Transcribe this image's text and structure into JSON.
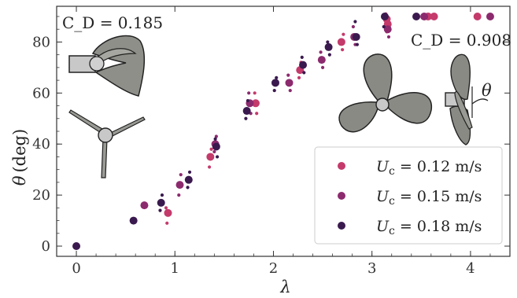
{
  "chart_data": {
    "type": "scatter",
    "xlabel": "λ",
    "ylabel_symbol": "θ",
    "ylabel_unit": "(deg)",
    "xlim": [
      -0.2,
      4.4
    ],
    "ylim": [
      -4,
      94
    ],
    "xticks": [
      "0",
      "1",
      "2",
      "3",
      "4"
    ],
    "yticks": [
      "0",
      "20",
      "40",
      "60",
      "80"
    ],
    "annotations": {
      "left": "C_D = 0.185",
      "right": "C_D = 0.908",
      "theta_marker": "θ"
    },
    "legend_position": "lower-right",
    "series": [
      {
        "name": "U_c = 0.12 m/s",
        "legend_label": "U",
        "legend_sub": "c",
        "legend_value": " = 0.12 m/s",
        "color": "#c43a6b",
        "points": [
          [
            0.93,
            13
          ],
          [
            1.36,
            35
          ],
          [
            1.82,
            56
          ],
          [
            2.27,
            69
          ],
          [
            2.69,
            80
          ],
          [
            3.15,
            89
          ],
          [
            3.57,
            90
          ],
          [
            3.63,
            90
          ],
          [
            4.07,
            90
          ],
          [
            3.16,
            87
          ]
        ],
        "scatter": [
          [
            0.92,
            9
          ],
          [
            0.91,
            15
          ],
          [
            1.35,
            31
          ],
          [
            1.37,
            38
          ],
          [
            1.83,
            52
          ],
          [
            1.81,
            60
          ],
          [
            2.26,
            66
          ],
          [
            2.28,
            72
          ],
          [
            2.7,
            77
          ],
          [
            2.71,
            83
          ],
          [
            3.15,
            84
          ],
          [
            3.14,
            91
          ]
        ]
      },
      {
        "name": "U_c = 0.15 m/s",
        "legend_label": "U",
        "legend_sub": "c",
        "legend_value": " = 0.15 m/s",
        "color": "#8c2a6e",
        "points": [
          [
            0.69,
            16
          ],
          [
            1.05,
            24
          ],
          [
            1.41,
            40
          ],
          [
            1.76,
            56
          ],
          [
            2.16,
            64
          ],
          [
            2.49,
            73
          ],
          [
            2.82,
            82
          ],
          [
            3.16,
            85
          ],
          [
            3.53,
            90
          ],
          [
            4.2,
            90
          ]
        ],
        "scatter": [
          [
            1.06,
            28
          ],
          [
            1.04,
            20
          ],
          [
            1.4,
            37
          ],
          [
            1.42,
            43
          ],
          [
            1.77,
            52
          ],
          [
            1.75,
            60
          ],
          [
            2.17,
            61
          ],
          [
            2.15,
            67
          ],
          [
            2.5,
            70
          ],
          [
            2.48,
            76
          ],
          [
            2.83,
            79
          ],
          [
            2.81,
            86
          ],
          [
            3.17,
            82
          ]
        ]
      },
      {
        "name": "U_c = 0.18 m/s",
        "legend_label": "U",
        "legend_sub": "c",
        "legend_value": " = 0.18 m/s",
        "color": "#3a1a4e",
        "points": [
          [
            0.0,
            0
          ],
          [
            0.58,
            10
          ],
          [
            0.86,
            17
          ],
          [
            1.14,
            26
          ],
          [
            1.42,
            39
          ],
          [
            1.73,
            53
          ],
          [
            2.02,
            64
          ],
          [
            2.3,
            71
          ],
          [
            2.56,
            78
          ],
          [
            2.84,
            82
          ],
          [
            3.13,
            90
          ],
          [
            3.45,
            90
          ]
        ],
        "scatter": [
          [
            0.87,
            20
          ],
          [
            0.85,
            14
          ],
          [
            1.13,
            23
          ],
          [
            1.15,
            29
          ],
          [
            1.43,
            35
          ],
          [
            1.41,
            42
          ],
          [
            1.72,
            50
          ],
          [
            1.74,
            57
          ],
          [
            2.01,
            61
          ],
          [
            2.03,
            66
          ],
          [
            2.31,
            68
          ],
          [
            2.29,
            74
          ],
          [
            2.57,
            75
          ],
          [
            2.55,
            80
          ],
          [
            2.85,
            79
          ],
          [
            2.83,
            88
          ],
          [
            3.12,
            86
          ]
        ]
      }
    ]
  },
  "icons": {
    "left_top": "rotor-with-hub-icon",
    "left_bottom": "three-blade-thin-rotor-icon",
    "right_middle": "three-blade-wide-rotor-icon",
    "right_edge": "side-view-rotor-icon"
  }
}
